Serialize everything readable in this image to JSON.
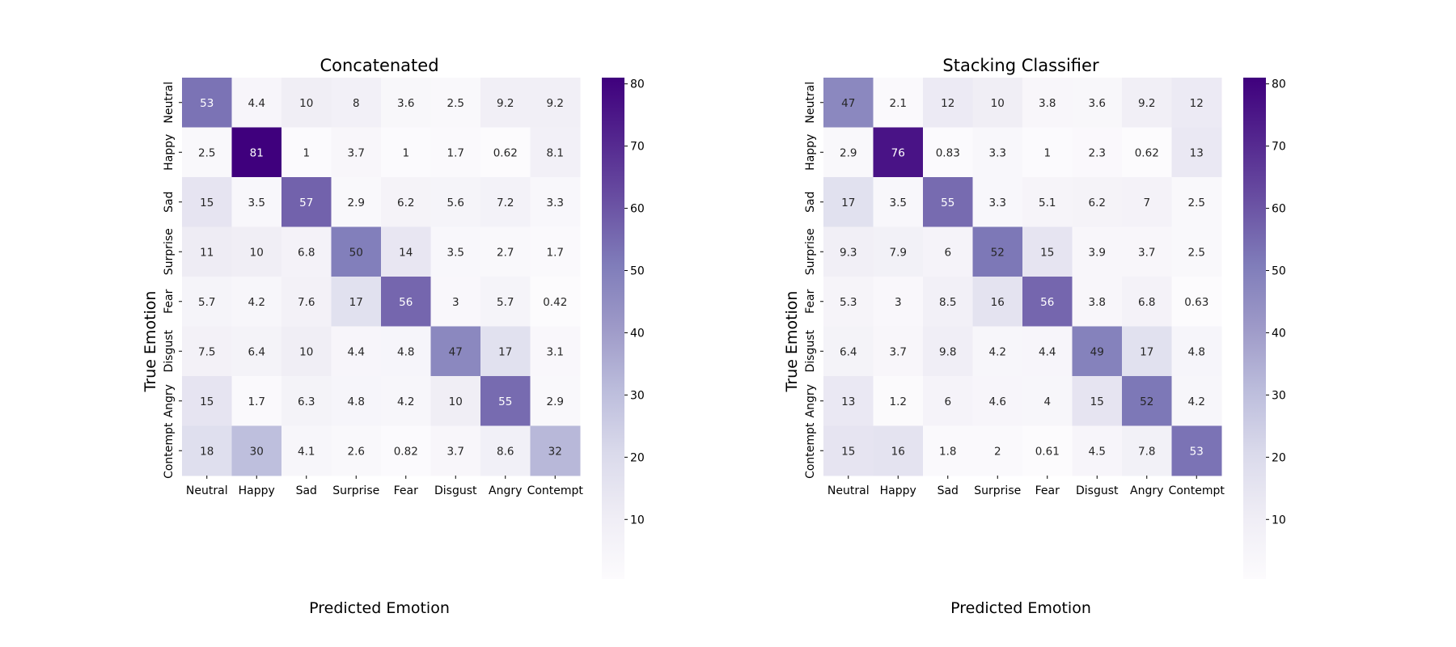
{
  "chart_data": [
    {
      "type": "heatmap",
      "title": "Concatenated",
      "xlabel": "Predicted Emotion",
      "ylabel": "True Emotion",
      "x_categories": [
        "Neutral",
        "Happy",
        "Sad",
        "Surprise",
        "Fear",
        "Disgust",
        "Angry",
        "Contempt"
      ],
      "y_categories": [
        "Neutral",
        "Happy",
        "Sad",
        "Surprise",
        "Fear",
        "Disgust",
        "Angry",
        "Contempt"
      ],
      "values": [
        [
          53,
          4.4,
          10,
          8,
          3.6,
          2.5,
          9.2,
          9.2
        ],
        [
          2.5,
          81,
          1,
          3.7,
          1,
          1.7,
          0.62,
          8.1
        ],
        [
          15,
          3.5,
          57,
          2.9,
          6.2,
          5.6,
          7.2,
          3.3
        ],
        [
          11,
          10,
          6.8,
          50,
          14,
          3.5,
          2.7,
          1.7
        ],
        [
          5.7,
          4.2,
          7.6,
          17,
          56,
          3,
          5.7,
          0.42
        ],
        [
          7.5,
          6.4,
          10,
          4.4,
          4.8,
          47,
          17,
          3.1
        ],
        [
          15,
          1.7,
          6.3,
          4.8,
          4.2,
          10,
          55,
          2.9
        ],
        [
          18,
          30,
          4.1,
          2.6,
          0.82,
          3.7,
          8.6,
          32
        ]
      ],
      "colormap": "Purples",
      "colorbar": {
        "vmin": 0.42,
        "vmax": 81,
        "ticks": [
          10,
          20,
          30,
          40,
          50,
          60,
          70,
          80
        ]
      }
    },
    {
      "type": "heatmap",
      "title": "Stacking Classifier",
      "xlabel": "Predicted Emotion",
      "ylabel": "True Emotion",
      "x_categories": [
        "Neutral",
        "Happy",
        "Sad",
        "Surprise",
        "Fear",
        "Disgust",
        "Angry",
        "Contempt"
      ],
      "y_categories": [
        "Neutral",
        "Happy",
        "Sad",
        "Surprise",
        "Fear",
        "Disgust",
        "Angry",
        "Contempt"
      ],
      "values": [
        [
          47,
          2.1,
          12,
          10,
          3.8,
          3.6,
          9.2,
          12
        ],
        [
          2.9,
          76,
          0.83,
          3.3,
          1,
          2.3,
          0.62,
          13
        ],
        [
          17,
          3.5,
          55,
          3.3,
          5.1,
          6.2,
          7,
          2.5
        ],
        [
          9.3,
          7.9,
          6,
          52,
          15,
          3.9,
          3.7,
          2.5
        ],
        [
          5.3,
          3,
          8.5,
          16,
          56,
          3.8,
          6.8,
          0.63
        ],
        [
          6.4,
          3.7,
          9.8,
          4.2,
          4.4,
          49,
          17,
          4.8
        ],
        [
          13,
          1.2,
          6,
          4.6,
          4,
          15,
          52,
          4.2
        ],
        [
          15,
          16,
          1.8,
          2,
          0.61,
          4.5,
          7.8,
          53
        ]
      ],
      "colormap": "Purples",
      "colorbar": {
        "vmin": 0.42,
        "vmax": 81,
        "ticks": [
          10,
          20,
          30,
          40,
          50,
          60,
          70,
          80
        ]
      }
    }
  ]
}
